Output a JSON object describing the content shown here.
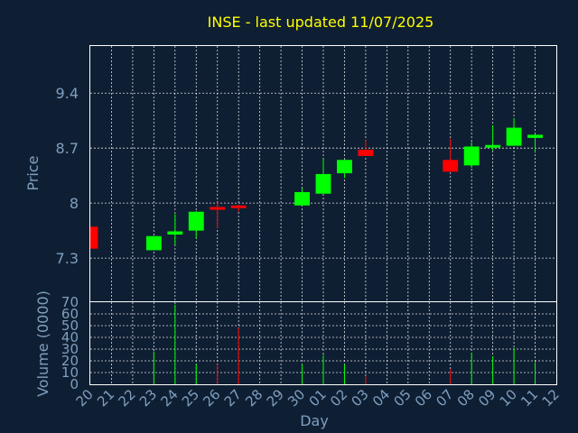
{
  "chart_data": {
    "type": "candlestick",
    "title": "INSE - last updated 11/07/2025",
    "xlabel": "Day",
    "price_ylabel": "Price",
    "volume_ylabel": "Volume (0000)",
    "price_ylim": [
      6.75,
      10.0
    ],
    "price_ticks": [
      "7.3",
      "8",
      "8.7",
      "9.4"
    ],
    "volume_ylim": [
      0,
      70
    ],
    "volume_ticks": [
      "0",
      "10",
      "20",
      "30",
      "40",
      "50",
      "60",
      "70"
    ],
    "x_ticks": [
      "20",
      "21",
      "22",
      "23",
      "24",
      "25",
      "26",
      "27",
      "28",
      "29",
      "30",
      "01",
      "02",
      "03",
      "04",
      "05",
      "06",
      "07",
      "08",
      "09",
      "10",
      "11",
      "12"
    ],
    "colors": {
      "up": "#00ff00",
      "down": "#ff0000",
      "background": "#0f1f33",
      "title": "#ffff00",
      "axis_text": "#7f9fbf",
      "grid": "#ffffff"
    },
    "candles": [
      {
        "x": "20",
        "open": 7.7,
        "close": 7.42,
        "high": 7.7,
        "low": 7.42,
        "volume": 0
      },
      {
        "x": "23",
        "open": 7.4,
        "close": 7.58,
        "high": 7.58,
        "low": 7.4,
        "volume": 28
      },
      {
        "x": "24",
        "open": 7.6,
        "close": 7.64,
        "high": 7.86,
        "low": 7.47,
        "volume": 68
      },
      {
        "x": "25",
        "open": 7.65,
        "close": 7.89,
        "high": 7.9,
        "low": 7.55,
        "volume": 17
      },
      {
        "x": "26",
        "open": 7.95,
        "close": 7.94,
        "high": 8.01,
        "low": 7.68,
        "volume": 17
      },
      {
        "x": "27",
        "open": 7.97,
        "close": 7.95,
        "high": 7.98,
        "low": 7.89,
        "volume": 48
      },
      {
        "x": "30",
        "open": 7.97,
        "close": 8.14,
        "high": 8.19,
        "low": 7.97,
        "volume": 17
      },
      {
        "x": "01",
        "open": 8.12,
        "close": 8.37,
        "high": 8.56,
        "low": 8.12,
        "volume": 25
      },
      {
        "x": "02",
        "open": 8.38,
        "close": 8.55,
        "high": 8.55,
        "low": 8.32,
        "volume": 17
      },
      {
        "x": "03",
        "open": 8.68,
        "close": 8.6,
        "high": 8.8,
        "low": 8.6,
        "volume": 7
      },
      {
        "x": "07",
        "open": 8.55,
        "close": 8.4,
        "high": 8.82,
        "low": 8.4,
        "volume": 13
      },
      {
        "x": "08",
        "open": 8.48,
        "close": 8.72,
        "high": 8.78,
        "low": 8.45,
        "volume": 27
      },
      {
        "x": "09",
        "open": 8.71,
        "close": 8.74,
        "high": 8.99,
        "low": 8.67,
        "volume": 24
      },
      {
        "x": "10",
        "open": 8.73,
        "close": 8.96,
        "high": 9.08,
        "low": 8.73,
        "volume": 31
      },
      {
        "x": "11",
        "open": 8.83,
        "close": 8.87,
        "high": 8.88,
        "low": 8.64,
        "volume": 19
      }
    ]
  }
}
